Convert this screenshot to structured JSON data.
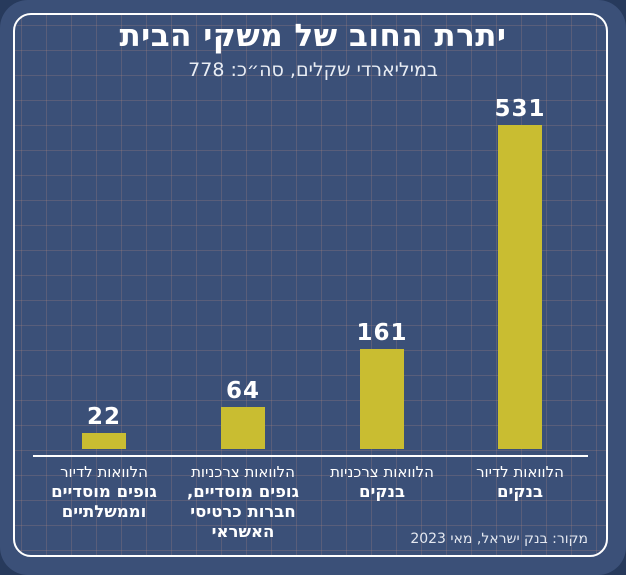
{
  "chart_data": {
    "type": "bar",
    "title": "יתרת החוב של משקי הבית",
    "subtitle": "במיליארדי שקלים, סה״כ: 778",
    "total": 778,
    "categories": [
      "הלוואות לדיור — גופים מוסדיים וממשלתיים",
      "הלוואות צרכניות — גופים מוסדיים, חברות כרטיסי האשראי",
      "הלוואות צרכניות — בנקים",
      "הלוואות לדיור — בנקים"
    ],
    "values": [
      22,
      64,
      161,
      531
    ],
    "ylim": [
      0,
      560
    ],
    "bar_color": "#c9bd31",
    "background_color": "#3b5078",
    "source": "מקור: בנק ישראל, מאי 2023",
    "legend": "none",
    "grid": "decorative square grid"
  },
  "bars": [
    {
      "value": "22",
      "label_regular": "הלוואות לדיור",
      "label_bold": "גופים מוסדיים\nוממשלתיים"
    },
    {
      "value": "64",
      "label_regular": "הלוואות צרכניות",
      "label_bold": "גופים מוסדיים,\nחברות כרטיסי\nהאשראי"
    },
    {
      "value": "161",
      "label_regular": "הלוואות צרכניות",
      "label_bold": "בנקים"
    },
    {
      "value": "531",
      "label_regular": "הלוואות לדיור",
      "label_bold": "בנקים"
    }
  ]
}
